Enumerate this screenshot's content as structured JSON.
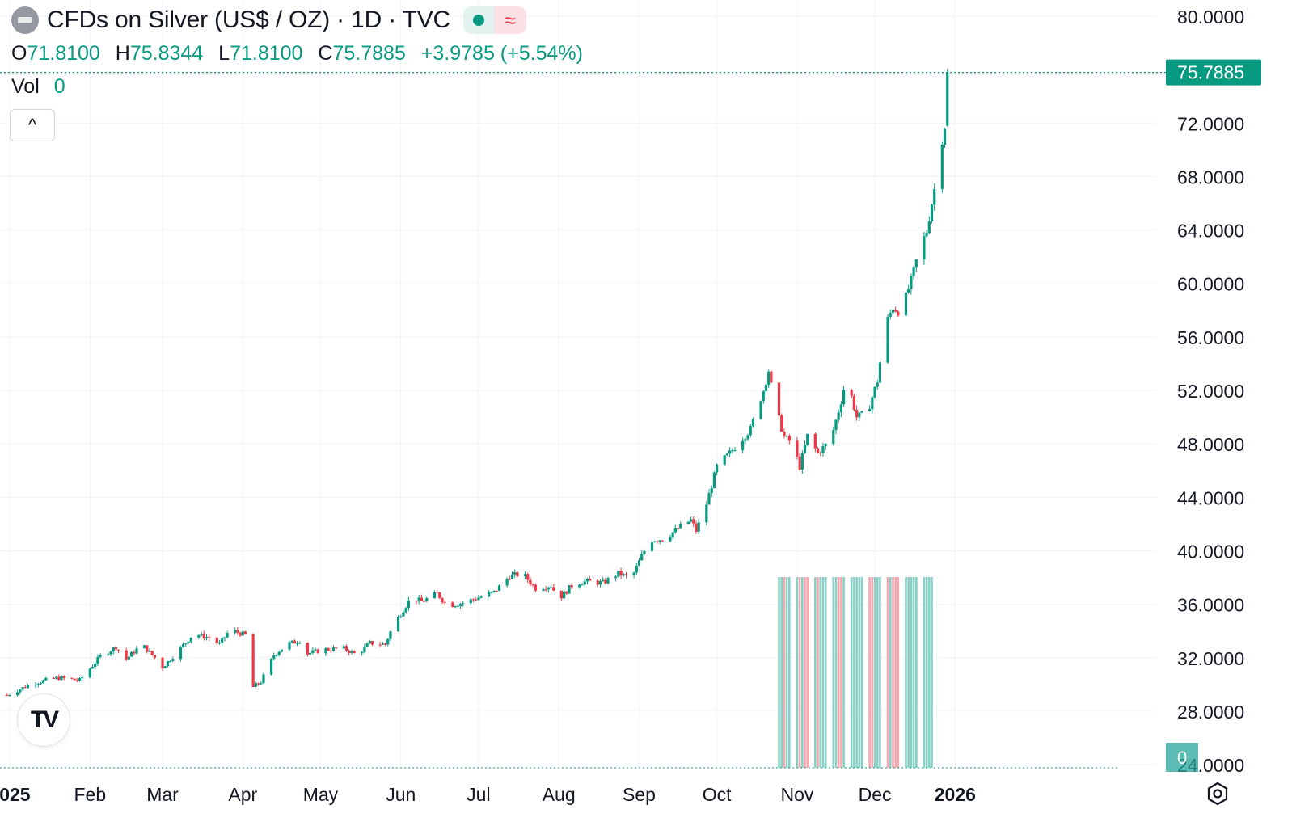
{
  "header": {
    "title": "CFDs on Silver (US$ / OZ) · 1D · TVC",
    "market_icon": "dot-icon",
    "alt_icon": "≈",
    "open_label": "O",
    "open": "71.8100",
    "high_label": "H",
    "high": "75.8344",
    "low_label": "L",
    "low": "71.8100",
    "close_label": "C",
    "close": "75.7885",
    "change": "+3.9785 (+5.54%)"
  },
  "volume": {
    "label": "Vol",
    "value": "0",
    "badge": "0"
  },
  "collapse_icon": "^",
  "logo_text": "TV",
  "colors": {
    "up": "#089981",
    "down": "#f23645",
    "grid": "#f0f3fa",
    "axis_text": "#131722"
  },
  "chart_data": {
    "type": "candlestick",
    "symbol": "CFDs on Silver (US$ / OZ)",
    "interval": "1D",
    "ylim": [
      26.0,
      80.0
    ],
    "y_ticks": [
      "80.0000",
      "72.0000",
      "68.0000",
      "64.0000",
      "60.0000",
      "56.0000",
      "52.0000",
      "48.0000",
      "44.0000",
      "40.0000",
      "36.0000",
      "32.0000",
      "28.0000",
      "24.0000"
    ],
    "y_tick_values": [
      80,
      72,
      68,
      64,
      60,
      56,
      52,
      48,
      44,
      40,
      36,
      32,
      28,
      24
    ],
    "x_labels": [
      "2025",
      "Feb",
      "Mar",
      "Apr",
      "May",
      "Jun",
      "Jul",
      "Aug",
      "Sep",
      "Oct",
      "Nov",
      "Dec",
      "2026"
    ],
    "x_label_days": [
      1,
      32,
      60,
      91,
      121,
      152,
      182,
      213,
      244,
      274,
      305,
      335,
      366
    ],
    "last_price": "75.7885",
    "last_price_value": 75.7885,
    "anchors": [
      [
        0,
        29.2
      ],
      [
        10,
        30.1
      ],
      [
        20,
        30.5
      ],
      [
        28,
        30.3
      ],
      [
        36,
        32.1
      ],
      [
        42,
        32.8
      ],
      [
        46,
        31.9
      ],
      [
        52,
        33.0
      ],
      [
        58,
        31.8
      ],
      [
        60,
        31.3
      ],
      [
        66,
        32.5
      ],
      [
        72,
        33.8
      ],
      [
        78,
        33.5
      ],
      [
        82,
        33.0
      ],
      [
        86,
        34.1
      ],
      [
        92,
        33.7
      ],
      [
        95,
        29.8
      ],
      [
        98,
        30.2
      ],
      [
        103,
        32.2
      ],
      [
        108,
        33.0
      ],
      [
        113,
        33.3
      ],
      [
        116,
        32.3
      ],
      [
        122,
        32.6
      ],
      [
        130,
        32.7
      ],
      [
        135,
        32.2
      ],
      [
        140,
        33.1
      ],
      [
        146,
        33.0
      ],
      [
        149,
        34.4
      ],
      [
        153,
        35.6
      ],
      [
        156,
        36.5
      ],
      [
        160,
        36.2
      ],
      [
        166,
        36.8
      ],
      [
        170,
        35.9
      ],
      [
        176,
        36.1
      ],
      [
        182,
        36.5
      ],
      [
        188,
        36.9
      ],
      [
        194,
        38.1
      ],
      [
        199,
        38.3
      ],
      [
        204,
        37.2
      ],
      [
        210,
        37.4
      ],
      [
        213,
        36.4
      ],
      [
        219,
        37.6
      ],
      [
        224,
        37.7
      ],
      [
        230,
        37.6
      ],
      [
        236,
        38.3
      ],
      [
        241,
        37.9
      ],
      [
        244,
        39.2
      ],
      [
        248,
        40.8
      ],
      [
        254,
        40.9
      ],
      [
        259,
        41.7
      ],
      [
        264,
        42.3
      ],
      [
        266,
        41.5
      ],
      [
        270,
        43.5
      ],
      [
        274,
        46.3
      ],
      [
        279,
        47.3
      ],
      [
        283,
        48.2
      ],
      [
        287,
        49.1
      ],
      [
        289,
        50.3
      ],
      [
        292,
        52.0
      ],
      [
        294,
        53.5
      ],
      [
        296,
        51.2
      ],
      [
        300,
        48.5
      ],
      [
        303,
        48.1
      ],
      [
        306,
        46.3
      ],
      [
        309,
        48.6
      ],
      [
        313,
        47.3
      ],
      [
        318,
        48.3
      ],
      [
        322,
        51.2
      ],
      [
        324,
        53.0
      ],
      [
        326,
        51.5
      ],
      [
        328,
        50.0
      ],
      [
        332,
        50.3
      ],
      [
        336,
        52.7
      ],
      [
        339,
        56.9
      ],
      [
        342,
        58.2
      ],
      [
        345,
        57.8
      ],
      [
        349,
        60.2
      ],
      [
        352,
        62.4
      ],
      [
        355,
        63.9
      ],
      [
        357,
        66.0
      ],
      [
        359,
        68.1
      ],
      [
        361,
        70.8
      ],
      [
        362,
        71.8
      ],
      [
        363,
        75.79
      ]
    ],
    "volume_bars": {
      "start_day": 297,
      "end_day": 357,
      "note": "volume histogram bars"
    }
  }
}
